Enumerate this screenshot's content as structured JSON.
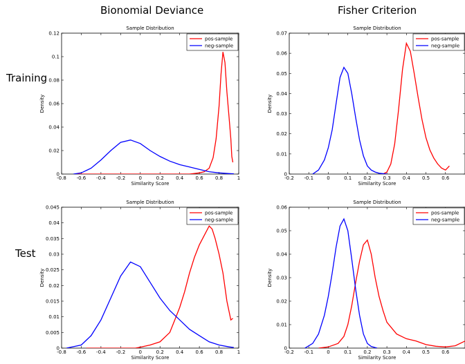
{
  "layout_titles": {
    "col_left": "Bionomial Deviance",
    "col_right": "Fisher Criterion",
    "row_top": "Training",
    "row_bottom": "Test"
  },
  "chart_data": [
    {
      "type": "line",
      "title": "Sample Distribution",
      "xlabel": "Similarity Score",
      "ylabel": "Density",
      "xlim": [
        -0.8,
        1
      ],
      "ylim": [
        0,
        0.12
      ],
      "xticks": [
        "-0.8",
        "-0.6",
        "-0.4",
        "-0.2",
        "0",
        "0.2",
        "0.4",
        "0.6",
        "0.8",
        "1"
      ],
      "yticks": [
        "0",
        "0.02",
        "0.04",
        "0.06",
        "0.08",
        "0.1",
        "0.12"
      ],
      "legend": "top-right",
      "series": [
        {
          "name": "pos-sample",
          "color": "#ff0000",
          "x": [
            -0.65,
            0.5,
            0.6,
            0.65,
            0.7,
            0.74,
            0.77,
            0.8,
            0.82,
            0.84,
            0.86,
            0.88,
            0.9,
            0.92,
            0.93,
            0.94
          ],
          "y": [
            0,
            0,
            0.001,
            0.002,
            0.005,
            0.014,
            0.03,
            0.058,
            0.085,
            0.104,
            0.095,
            0.07,
            0.05,
            0.03,
            0.015,
            0.01
          ]
        },
        {
          "name": "neg-sample",
          "color": "#0000ff",
          "x": [
            -0.68,
            -0.6,
            -0.5,
            -0.4,
            -0.3,
            -0.2,
            -0.1,
            0,
            0.1,
            0.2,
            0.3,
            0.4,
            0.5,
            0.6,
            0.7,
            0.8,
            0.9,
            0.95
          ],
          "y": [
            0,
            0.001,
            0.005,
            0.012,
            0.02,
            0.027,
            0.029,
            0.026,
            0.02,
            0.015,
            0.011,
            0.008,
            0.006,
            0.004,
            0.002,
            0.001,
            0.0004,
            0.0002
          ]
        }
      ]
    },
    {
      "type": "line",
      "title": "Sample Distribution",
      "xlabel": "Similarity Score",
      "ylabel": "Density",
      "xlim": [
        -0.2,
        0.7
      ],
      "ylim": [
        0,
        0.07
      ],
      "xticks": [
        "-0.2",
        "-0.1",
        "0",
        "0.1",
        "0.2",
        "0.3",
        "0.4",
        "0.5",
        "0.6"
      ],
      "yticks": [
        "0",
        "0.01",
        "0.02",
        "0.03",
        "0.04",
        "0.05",
        "0.06",
        "0.07"
      ],
      "legend": "top-right",
      "series": [
        {
          "name": "pos-sample",
          "color": "#ff0000",
          "x": [
            0.28,
            0.3,
            0.32,
            0.34,
            0.36,
            0.38,
            0.4,
            0.42,
            0.44,
            0.46,
            0.48,
            0.5,
            0.52,
            0.54,
            0.56,
            0.58,
            0.6,
            0.61,
            0.62
          ],
          "y": [
            0,
            0.001,
            0.005,
            0.015,
            0.032,
            0.052,
            0.065,
            0.061,
            0.05,
            0.038,
            0.027,
            0.018,
            0.012,
            0.008,
            0.005,
            0.003,
            0.002,
            0.003,
            0.004
          ]
        },
        {
          "name": "neg-sample",
          "color": "#0000ff",
          "x": [
            -0.08,
            -0.05,
            -0.02,
            0,
            0.02,
            0.04,
            0.06,
            0.08,
            0.1,
            0.12,
            0.14,
            0.16,
            0.18,
            0.2,
            0.22,
            0.24,
            0.26,
            0.3
          ],
          "y": [
            0,
            0.002,
            0.007,
            0.013,
            0.022,
            0.035,
            0.048,
            0.053,
            0.05,
            0.04,
            0.028,
            0.017,
            0.009,
            0.004,
            0.002,
            0.001,
            0.0004,
            0
          ]
        }
      ]
    },
    {
      "type": "line",
      "title": "Sample Distribution",
      "xlabel": "Similarity Score",
      "ylabel": "Density",
      "xlim": [
        -0.8,
        1
      ],
      "ylim": [
        0,
        0.045
      ],
      "xticks": [
        "-0.8",
        "-0.6",
        "-0.4",
        "-0.2",
        "0",
        "0.2",
        "0.4",
        "0.6",
        "0.8",
        "1"
      ],
      "yticks": [
        "0",
        "0.005",
        "0.01",
        "0.015",
        "0.02",
        "0.025",
        "0.03",
        "0.035",
        "0.04",
        "0.045"
      ],
      "legend": "top-right",
      "series": [
        {
          "name": "pos-sample",
          "color": "#ff0000",
          "x": [
            -0.55,
            -0.05,
            0,
            0.1,
            0.2,
            0.3,
            0.35,
            0.4,
            0.45,
            0.5,
            0.55,
            0.6,
            0.65,
            0.7,
            0.73,
            0.76,
            0.8,
            0.84,
            0.88,
            0.92,
            0.94
          ],
          "y": [
            0,
            0,
            0.0003,
            0.001,
            0.002,
            0.005,
            0.009,
            0.013,
            0.018,
            0.024,
            0.029,
            0.033,
            0.036,
            0.039,
            0.038,
            0.035,
            0.03,
            0.024,
            0.015,
            0.009,
            0.0095
          ]
        },
        {
          "name": "neg-sample",
          "color": "#0000ff",
          "x": [
            -0.75,
            -0.6,
            -0.5,
            -0.4,
            -0.3,
            -0.2,
            -0.1,
            0,
            0.1,
            0.2,
            0.3,
            0.4,
            0.5,
            0.6,
            0.7,
            0.8,
            0.9,
            0.95
          ],
          "y": [
            0,
            0.001,
            0.004,
            0.009,
            0.016,
            0.023,
            0.0275,
            0.026,
            0.021,
            0.016,
            0.012,
            0.009,
            0.006,
            0.004,
            0.002,
            0.001,
            0.0004,
            0.0002
          ]
        }
      ]
    },
    {
      "type": "line",
      "title": "Sample Distribution",
      "xlabel": "Similarity Score",
      "ylabel": "Density",
      "xlim": [
        -0.2,
        0.7
      ],
      "ylim": [
        0,
        0.06
      ],
      "xticks": [
        "-0.2",
        "-0.1",
        "0",
        "0.1",
        "0.2",
        "0.3",
        "0.4",
        "0.5",
        "0.6"
      ],
      "yticks": [
        "0",
        "0.01",
        "0.02",
        "0.03",
        "0.04",
        "0.05",
        "0.06"
      ],
      "legend": "top-right",
      "series": [
        {
          "name": "pos-sample",
          "color": "#ff0000",
          "x": [
            -0.05,
            0,
            0.05,
            0.08,
            0.1,
            0.12,
            0.14,
            0.16,
            0.18,
            0.2,
            0.22,
            0.24,
            0.26,
            0.28,
            0.3,
            0.35,
            0.4,
            0.45,
            0.5,
            0.55,
            0.6,
            0.65,
            0.7
          ],
          "y": [
            0,
            0.0005,
            0.002,
            0.005,
            0.01,
            0.018,
            0.028,
            0.037,
            0.044,
            0.046,
            0.04,
            0.03,
            0.022,
            0.016,
            0.011,
            0.006,
            0.004,
            0.003,
            0.0015,
            0.0008,
            0.0005,
            0.001,
            0.003
          ]
        },
        {
          "name": "neg-sample",
          "color": "#0000ff",
          "x": [
            -0.12,
            -0.08,
            -0.05,
            -0.02,
            0,
            0.02,
            0.04,
            0.06,
            0.08,
            0.1,
            0.12,
            0.14,
            0.16,
            0.18,
            0.2,
            0.22,
            0.25
          ],
          "y": [
            0,
            0.002,
            0.006,
            0.014,
            0.022,
            0.032,
            0.043,
            0.052,
            0.055,
            0.05,
            0.038,
            0.025,
            0.014,
            0.006,
            0.002,
            0.0007,
            0
          ]
        }
      ]
    }
  ]
}
